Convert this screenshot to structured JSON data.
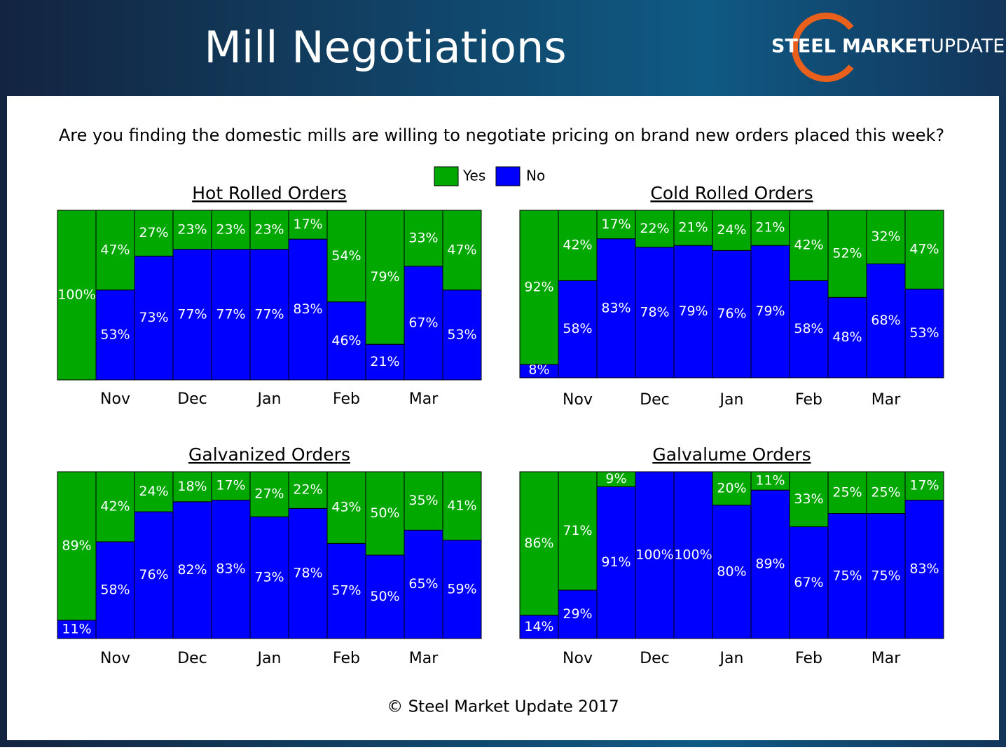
{
  "header": {
    "title": "Mill Negotiations",
    "logo": [
      "STEEL",
      "MARKET",
      "UPDATE"
    ]
  },
  "question": "Are you finding the domestic mills are willing to negotiate pricing on brand new orders placed this week?",
  "footer": "© Steel Market Update 2017",
  "chart_data": [
    {
      "type": "bar",
      "stacked": true,
      "title": "Hot Rolled Orders",
      "ylim": [
        0,
        100
      ],
      "categories": [
        null,
        "Nov",
        null,
        "Dec",
        null,
        "Jan",
        null,
        "Feb",
        null,
        "Mar",
        null
      ],
      "series": [
        {
          "name": "Yes",
          "color": "#00a800",
          "values": [
            100,
            47,
            27,
            23,
            23,
            23,
            17,
            54,
            79,
            33,
            47
          ],
          "value_labels": [
            "100%",
            "47%",
            "27%",
            "23%",
            "23%",
            "23%",
            "17%",
            "54%",
            "79%",
            "33%",
            "47%"
          ]
        },
        {
          "name": "No",
          "color": "#0000ff",
          "values": [
            0,
            53,
            73,
            77,
            77,
            77,
            83,
            46,
            21,
            67,
            53
          ],
          "value_labels": [
            null,
            "53%",
            "73%",
            "77%",
            "77%",
            "77%",
            "83%",
            "46%",
            "21%",
            "67%",
            "53%"
          ]
        }
      ]
    },
    {
      "type": "bar",
      "stacked": true,
      "title": "Cold Rolled Orders",
      "ylim": [
        0,
        100
      ],
      "categories": [
        null,
        "Nov",
        null,
        "Dec",
        null,
        "Jan",
        null,
        "Feb",
        null,
        "Mar",
        null
      ],
      "series": [
        {
          "name": "Yes",
          "color": "#00a800",
          "values": [
            92,
            42,
            17,
            22,
            21,
            24,
            21,
            42,
            52,
            32,
            47
          ],
          "value_labels": [
            "92%",
            "42%",
            "17%",
            "22%",
            "21%",
            "24%",
            "21%",
            "42%",
            "52%",
            "32%",
            "47%"
          ]
        },
        {
          "name": "No",
          "color": "#0000ff",
          "values": [
            8,
            58,
            83,
            78,
            79,
            76,
            79,
            58,
            48,
            68,
            53
          ],
          "value_labels": [
            "8%",
            "58%",
            "83%",
            "78%",
            "79%",
            "76%",
            "79%",
            "58%",
            "48%",
            "68%",
            "53%"
          ]
        }
      ]
    },
    {
      "type": "bar",
      "stacked": true,
      "title": "Galvanized Orders",
      "ylim": [
        0,
        100
      ],
      "categories": [
        null,
        "Nov",
        null,
        "Dec",
        null,
        "Jan",
        null,
        "Feb",
        null,
        "Mar",
        null
      ],
      "series": [
        {
          "name": "Yes",
          "color": "#00a800",
          "values": [
            89,
            42,
            24,
            18,
            17,
            27,
            22,
            43,
            50,
            35,
            41
          ],
          "value_labels": [
            "89%",
            "42%",
            "24%",
            "18%",
            "17%",
            "27%",
            "22%",
            "43%",
            "50%",
            "35%",
            "41%"
          ]
        },
        {
          "name": "No",
          "color": "#0000ff",
          "values": [
            11,
            58,
            76,
            82,
            83,
            73,
            78,
            57,
            50,
            65,
            59
          ],
          "value_labels": [
            "11%",
            "58%",
            "76%",
            "82%",
            "83%",
            "73%",
            "78%",
            "57%",
            "50%",
            "65%",
            "59%"
          ]
        }
      ]
    },
    {
      "type": "bar",
      "stacked": true,
      "title": "Galvalume Orders",
      "ylim": [
        0,
        100
      ],
      "categories": [
        null,
        "Nov",
        null,
        "Dec",
        null,
        "Jan",
        null,
        "Feb",
        null,
        "Mar",
        null
      ],
      "series": [
        {
          "name": "Yes",
          "color": "#00a800",
          "values": [
            86,
            71,
            9,
            0,
            0,
            20,
            11,
            33,
            25,
            25,
            17
          ],
          "value_labels": [
            "86%",
            "71%",
            "9%",
            null,
            null,
            "20%",
            "11%",
            "33%",
            "25%",
            "25%",
            "17%"
          ]
        },
        {
          "name": "No",
          "color": "#0000ff",
          "values": [
            14,
            29,
            91,
            100,
            100,
            80,
            89,
            67,
            75,
            75,
            83
          ],
          "value_labels": [
            "14%",
            "29%",
            "91%",
            "100%",
            "100%",
            "80%",
            "89%",
            "67%",
            "75%",
            "75%",
            "83%"
          ]
        }
      ]
    }
  ]
}
